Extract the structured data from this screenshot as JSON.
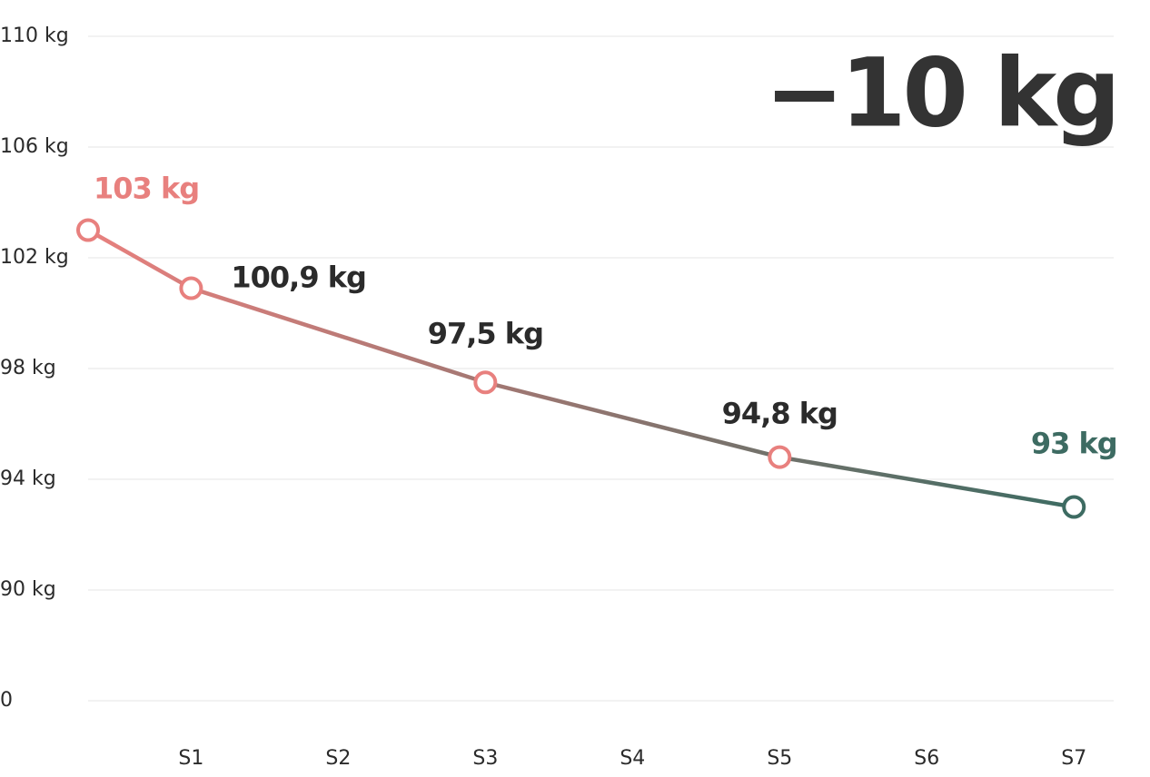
{
  "chart_data": {
    "type": "line",
    "annotation": "−10 kg",
    "annotation_color": "#333333",
    "x": [
      0.3,
      1,
      3,
      5,
      7
    ],
    "values": [
      103,
      100.9,
      97.5,
      94.8,
      93
    ],
    "value_labels": [
      "103 kg",
      "100,9 kg",
      "97,5 kg",
      "94,8 kg",
      "93 kg"
    ],
    "label_colors": [
      "#e8807e",
      "#2b2b2b",
      "#2b2b2b",
      "#2b2b2b",
      "#3d6b62"
    ],
    "point_colors": [
      "#e8807e",
      "#e8807e",
      "#e8807e",
      "#e8807e",
      "#3d6b62"
    ],
    "line_color_start": "#e8807e",
    "line_color_end": "#3d6b62",
    "xlim": [
      0.3,
      7.27
    ],
    "xticks": [
      {
        "value": 1,
        "label": "S1"
      },
      {
        "value": 2,
        "label": "S2"
      },
      {
        "value": 3,
        "label": "S3"
      },
      {
        "value": 4,
        "label": "S4"
      },
      {
        "value": 5,
        "label": "S5"
      },
      {
        "value": 6,
        "label": "S6"
      },
      {
        "value": 7,
        "label": "S7"
      }
    ],
    "ylim": [
      0,
      110
    ],
    "yticks": [
      0,
      {
        "value": 90,
        "label": "90 kg"
      },
      {
        "value": 94,
        "label": "94 kg"
      },
      {
        "value": 98,
        "label": "98 kg"
      },
      {
        "value": 102,
        "label": "102 kg"
      },
      {
        "value": 106,
        "label": "106 kg"
      },
      {
        "value": 110,
        "label": "110 kg"
      }
    ],
    "grid": true
  }
}
